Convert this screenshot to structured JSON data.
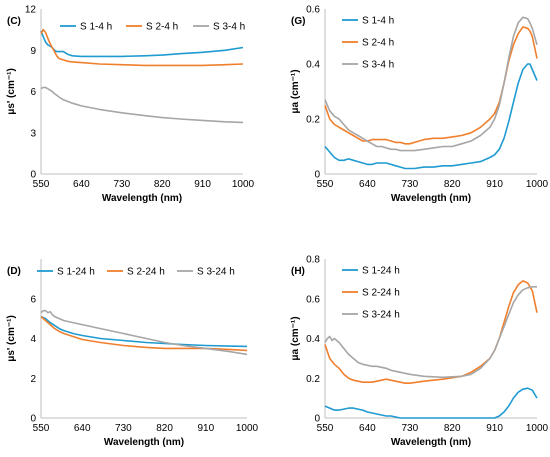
{
  "chart_data": [
    {
      "panel_label": "(C)",
      "type": "line",
      "xlabel": "Wavelength (nm)",
      "ylabel": "μs' (cm⁻¹)",
      "xlim": [
        550,
        1000
      ],
      "ylim": [
        0,
        12
      ],
      "xticks": [
        "550",
        "640",
        "730",
        "820",
        "910",
        "1000"
      ],
      "yticks": [
        "0",
        "3",
        "6",
        "9",
        "12"
      ],
      "legend_position": "top",
      "series": [
        {
          "name": "S 1-4 h",
          "color": "#1f9bd1",
          "x": [
            550,
            555,
            560,
            565,
            570,
            575,
            580,
            585,
            590,
            595,
            600,
            610,
            620,
            640,
            680,
            730,
            780,
            820,
            860,
            910,
            960,
            1000
          ],
          "y": [
            10.4,
            10.0,
            9.6,
            9.4,
            9.3,
            9.2,
            9.0,
            8.9,
            8.9,
            8.9,
            8.9,
            8.7,
            8.6,
            8.55,
            8.55,
            8.55,
            8.6,
            8.65,
            8.75,
            8.85,
            9.0,
            9.2
          ]
        },
        {
          "name": "S 2-4 h",
          "color": "#f07f2d",
          "x": [
            550,
            555,
            560,
            565,
            570,
            575,
            580,
            585,
            590,
            595,
            600,
            610,
            620,
            640,
            680,
            730,
            780,
            820,
            860,
            910,
            960,
            1000
          ],
          "y": [
            10.2,
            10.5,
            10.3,
            9.9,
            9.5,
            9.2,
            8.9,
            8.6,
            8.4,
            8.35,
            8.3,
            8.2,
            8.15,
            8.1,
            8.0,
            7.95,
            7.9,
            7.9,
            7.9,
            7.9,
            7.95,
            8.0
          ]
        },
        {
          "name": "S 3-4 h",
          "color": "#a6a6a6",
          "x": [
            550,
            555,
            560,
            565,
            570,
            575,
            580,
            590,
            600,
            620,
            640,
            680,
            730,
            780,
            820,
            860,
            910,
            960,
            1000
          ],
          "y": [
            6.2,
            6.3,
            6.3,
            6.2,
            6.1,
            6.0,
            5.85,
            5.6,
            5.4,
            5.15,
            4.95,
            4.7,
            4.45,
            4.25,
            4.1,
            4.0,
            3.9,
            3.8,
            3.75
          ]
        }
      ]
    },
    {
      "panel_label": "(G)",
      "type": "line",
      "xlabel": "Wavelength (nm)",
      "ylabel": "μa (cm⁻¹)",
      "xlim": [
        550,
        1000
      ],
      "ylim": [
        0,
        0.6
      ],
      "xticks": [
        "550",
        "640",
        "730",
        "820",
        "910",
        "1000"
      ],
      "yticks": [
        "0",
        "0.2",
        "0.4",
        "0.6"
      ],
      "legend_position": "top-left",
      "series": [
        {
          "name": "S 1-4 h",
          "color": "#1f9bd1",
          "x": [
            550,
            560,
            570,
            580,
            590,
            600,
            610,
            620,
            630,
            640,
            650,
            660,
            670,
            680,
            690,
            700,
            710,
            720,
            730,
            740,
            760,
            780,
            800,
            820,
            840,
            860,
            880,
            900,
            910,
            920,
            930,
            940,
            950,
            960,
            970,
            980,
            985,
            990,
            1000
          ],
          "y": [
            0.1,
            0.08,
            0.06,
            0.05,
            0.05,
            0.055,
            0.05,
            0.045,
            0.04,
            0.035,
            0.035,
            0.04,
            0.04,
            0.04,
            0.035,
            0.03,
            0.025,
            0.02,
            0.02,
            0.02,
            0.025,
            0.025,
            0.03,
            0.03,
            0.035,
            0.04,
            0.045,
            0.06,
            0.07,
            0.09,
            0.13,
            0.19,
            0.26,
            0.33,
            0.38,
            0.4,
            0.4,
            0.38,
            0.34
          ]
        },
        {
          "name": "S 2-4 h",
          "color": "#f07f2d",
          "x": [
            550,
            560,
            570,
            580,
            590,
            600,
            610,
            620,
            630,
            640,
            650,
            660,
            670,
            680,
            690,
            700,
            710,
            720,
            730,
            740,
            760,
            780,
            800,
            820,
            840,
            860,
            880,
            900,
            910,
            920,
            930,
            940,
            950,
            960,
            970,
            980,
            985,
            990,
            1000
          ],
          "y": [
            0.25,
            0.2,
            0.18,
            0.17,
            0.16,
            0.15,
            0.14,
            0.13,
            0.12,
            0.12,
            0.125,
            0.125,
            0.125,
            0.125,
            0.12,
            0.115,
            0.115,
            0.11,
            0.11,
            0.115,
            0.125,
            0.13,
            0.13,
            0.135,
            0.14,
            0.15,
            0.17,
            0.2,
            0.22,
            0.26,
            0.33,
            0.41,
            0.47,
            0.51,
            0.535,
            0.53,
            0.52,
            0.5,
            0.42
          ]
        },
        {
          "name": "S 3-4 h",
          "color": "#a6a6a6",
          "x": [
            550,
            560,
            570,
            580,
            590,
            600,
            610,
            620,
            630,
            640,
            650,
            660,
            670,
            680,
            690,
            700,
            710,
            720,
            730,
            740,
            760,
            780,
            800,
            820,
            840,
            860,
            880,
            900,
            910,
            920,
            930,
            940,
            950,
            960,
            970,
            980,
            985,
            990,
            1000
          ],
          "y": [
            0.27,
            0.23,
            0.21,
            0.2,
            0.18,
            0.16,
            0.15,
            0.14,
            0.13,
            0.12,
            0.11,
            0.1,
            0.1,
            0.095,
            0.09,
            0.09,
            0.085,
            0.085,
            0.085,
            0.085,
            0.09,
            0.095,
            0.1,
            0.1,
            0.11,
            0.12,
            0.14,
            0.17,
            0.2,
            0.25,
            0.33,
            0.42,
            0.5,
            0.55,
            0.57,
            0.565,
            0.55,
            0.53,
            0.47
          ]
        }
      ]
    },
    {
      "panel_label": "(D)",
      "type": "line",
      "xlabel": "Wavelength (nm)",
      "ylabel": "μs' (cm⁻¹)",
      "xlim": [
        550,
        1000
      ],
      "ylim": [
        0,
        8
      ],
      "xticks": [
        "550",
        "640",
        "730",
        "820",
        "910",
        "1000"
      ],
      "yticks": [
        "0",
        "2",
        "4",
        "6"
      ],
      "legend_position": "top",
      "series": [
        {
          "name": "S 1-24 h",
          "color": "#1f9bd1",
          "x": [
            550,
            560,
            570,
            580,
            590,
            600,
            620,
            640,
            680,
            730,
            780,
            820,
            860,
            910,
            960,
            1000
          ],
          "y": [
            5.1,
            5.0,
            4.8,
            4.65,
            4.5,
            4.4,
            4.25,
            4.15,
            4.0,
            3.9,
            3.8,
            3.75,
            3.7,
            3.65,
            3.62,
            3.6
          ]
        },
        {
          "name": "S 2-24 h",
          "color": "#f07f2d",
          "x": [
            550,
            560,
            570,
            580,
            590,
            600,
            620,
            640,
            680,
            730,
            780,
            820,
            860,
            910,
            960,
            1000
          ],
          "y": [
            5.1,
            4.9,
            4.7,
            4.5,
            4.35,
            4.25,
            4.1,
            3.95,
            3.8,
            3.65,
            3.55,
            3.5,
            3.5,
            3.5,
            3.45,
            3.4
          ]
        },
        {
          "name": "S 3-24 h",
          "color": "#a6a6a6",
          "x": [
            550,
            555,
            560,
            565,
            570,
            575,
            580,
            590,
            600,
            620,
            640,
            680,
            730,
            780,
            820,
            860,
            910,
            960,
            1000
          ],
          "y": [
            5.3,
            5.4,
            5.4,
            5.3,
            5.35,
            5.2,
            5.1,
            5.0,
            4.9,
            4.8,
            4.7,
            4.5,
            4.25,
            4.0,
            3.8,
            3.65,
            3.5,
            3.35,
            3.2
          ]
        }
      ]
    },
    {
      "panel_label": "(H)",
      "type": "line",
      "xlabel": "Wavelength (nm)",
      "ylabel": "μa (cm⁻¹)",
      "xlim": [
        550,
        1000
      ],
      "ylim": [
        0,
        0.8
      ],
      "xticks": [
        "550",
        "640",
        "730",
        "820",
        "910",
        "1000"
      ],
      "yticks": [
        "0",
        "0.2",
        "0.4",
        "0.6",
        "0.8"
      ],
      "legend_position": "top-left",
      "series": [
        {
          "name": "S 1-24 h",
          "color": "#1f9bd1",
          "x": [
            550,
            560,
            570,
            580,
            590,
            600,
            610,
            620,
            630,
            640,
            650,
            660,
            670,
            680,
            690,
            700,
            710,
            720,
            730,
            760,
            800,
            840,
            880,
            910,
            920,
            930,
            940,
            950,
            960,
            970,
            980,
            990,
            1000
          ],
          "y": [
            0.06,
            0.05,
            0.04,
            0.04,
            0.045,
            0.05,
            0.05,
            0.045,
            0.04,
            0.03,
            0.025,
            0.02,
            0.015,
            0.01,
            0.01,
            0.005,
            0.0,
            0.0,
            0.0,
            0.0,
            0.0,
            0.0,
            0.0,
            0.0,
            0.01,
            0.03,
            0.06,
            0.1,
            0.13,
            0.145,
            0.15,
            0.14,
            0.1
          ]
        },
        {
          "name": "S 2-24 h",
          "color": "#f07f2d",
          "x": [
            550,
            560,
            570,
            580,
            590,
            600,
            610,
            620,
            630,
            640,
            650,
            660,
            670,
            680,
            690,
            700,
            710,
            720,
            730,
            760,
            800,
            840,
            860,
            880,
            900,
            910,
            920,
            930,
            940,
            950,
            960,
            970,
            980,
            990,
            1000
          ],
          "y": [
            0.37,
            0.3,
            0.27,
            0.25,
            0.22,
            0.2,
            0.19,
            0.185,
            0.18,
            0.18,
            0.18,
            0.185,
            0.19,
            0.195,
            0.19,
            0.185,
            0.18,
            0.175,
            0.175,
            0.185,
            0.195,
            0.21,
            0.23,
            0.26,
            0.3,
            0.34,
            0.4,
            0.48,
            0.56,
            0.63,
            0.67,
            0.69,
            0.68,
            0.64,
            0.53
          ]
        },
        {
          "name": "S 3-24 h",
          "color": "#a6a6a6",
          "x": [
            550,
            555,
            560,
            565,
            570,
            580,
            590,
            600,
            610,
            620,
            630,
            640,
            650,
            660,
            670,
            680,
            690,
            700,
            710,
            720,
            730,
            760,
            800,
            840,
            860,
            880,
            900,
            910,
            920,
            930,
            940,
            950,
            960,
            970,
            980,
            990,
            1000
          ],
          "y": [
            0.38,
            0.4,
            0.41,
            0.39,
            0.4,
            0.38,
            0.35,
            0.32,
            0.3,
            0.28,
            0.27,
            0.265,
            0.26,
            0.26,
            0.255,
            0.25,
            0.24,
            0.235,
            0.23,
            0.225,
            0.22,
            0.21,
            0.205,
            0.21,
            0.22,
            0.25,
            0.3,
            0.34,
            0.4,
            0.46,
            0.52,
            0.58,
            0.62,
            0.645,
            0.655,
            0.66,
            0.66
          ]
        }
      ]
    }
  ]
}
